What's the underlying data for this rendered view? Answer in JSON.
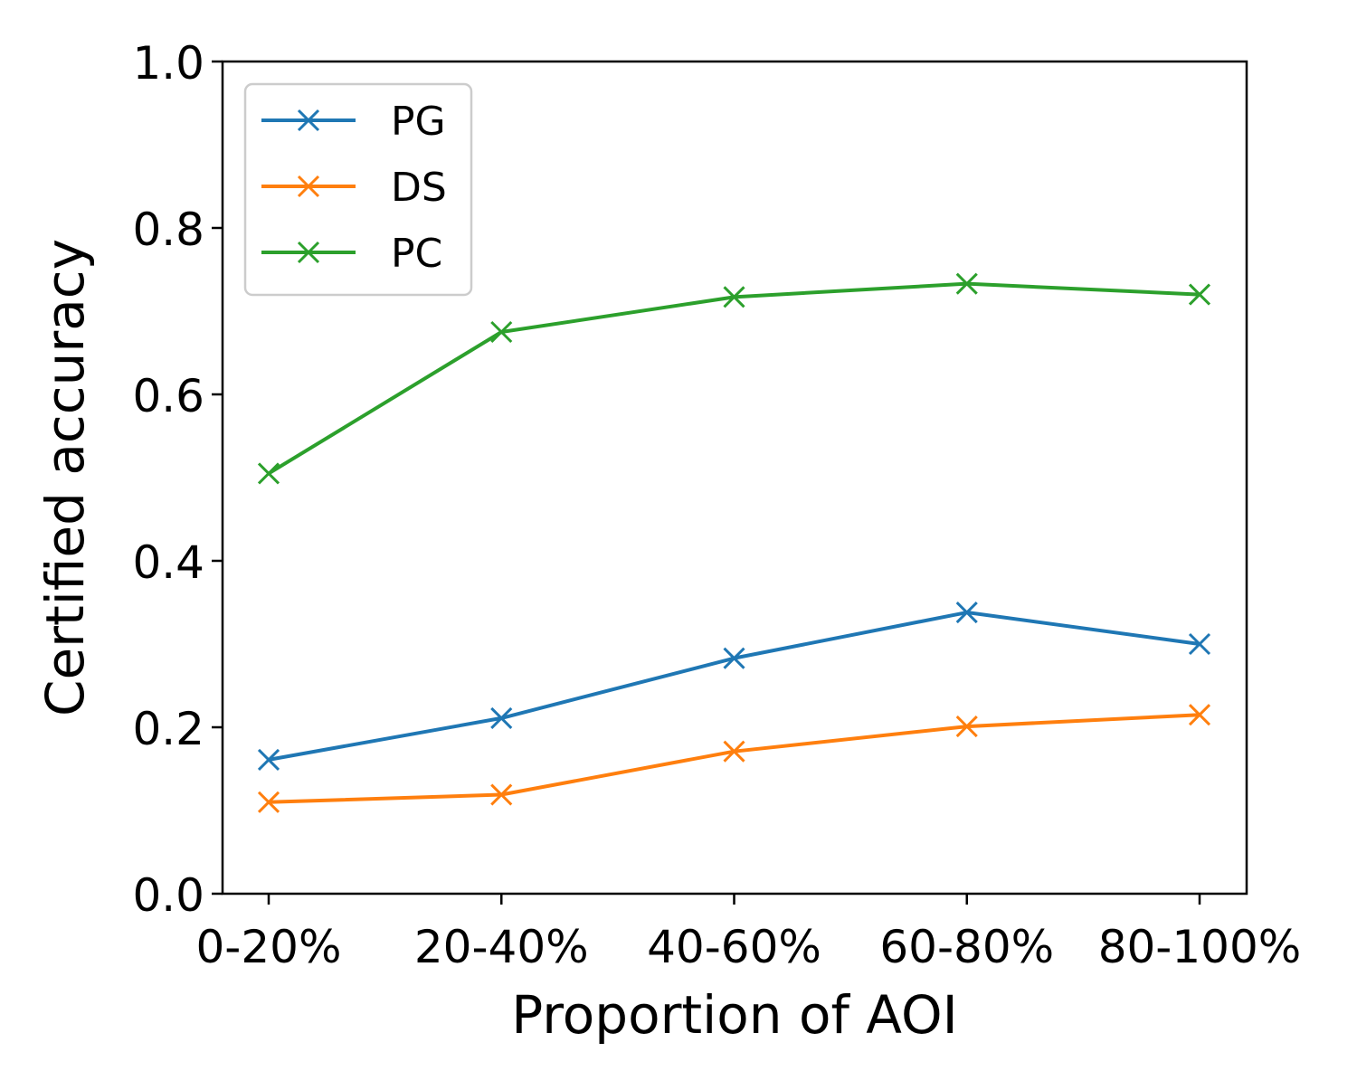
{
  "chart_data": {
    "type": "line",
    "title": "",
    "xlabel": "Proportion of AOI",
    "ylabel": "Certified accuracy",
    "categories": [
      "0-20%",
      "20-40%",
      "40-60%",
      "60-80%",
      "80-100%"
    ],
    "ylim": [
      0.0,
      1.0
    ],
    "yticks": [
      "0.0",
      "0.2",
      "0.4",
      "0.6",
      "0.8",
      "1.0"
    ],
    "grid": false,
    "legend_position": "top-left",
    "marker": "x",
    "series": [
      {
        "name": "PG",
        "color": "#1f77b4",
        "values": [
          0.161,
          0.211,
          0.283,
          0.338,
          0.3
        ]
      },
      {
        "name": "DS",
        "color": "#ff7f0e",
        "values": [
          0.11,
          0.119,
          0.171,
          0.201,
          0.215
        ]
      },
      {
        "name": "PC",
        "color": "#2ca02c",
        "values": [
          0.505,
          0.675,
          0.717,
          0.733,
          0.72
        ]
      }
    ]
  }
}
